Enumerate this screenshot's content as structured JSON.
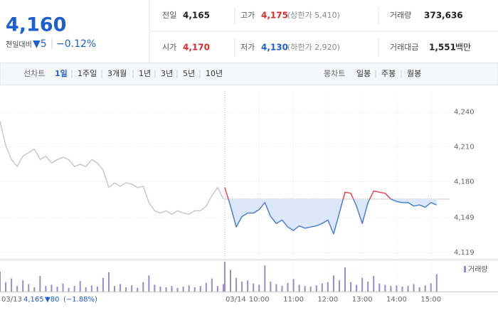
{
  "summary": {
    "price": "4,160",
    "change_label": "전일대비",
    "change": "▼5",
    "change_rate": "−0.12%",
    "items": [
      {
        "label": "전일",
        "value": "4,165"
      },
      {
        "label": "고가",
        "value": "4,175",
        "note": "(상한가 5,410)"
      },
      {
        "label": "거래량",
        "value": "373,636"
      },
      {
        "label": "시가",
        "value": "4,170"
      },
      {
        "label": "저가",
        "value": "4,130",
        "note": "(하한가 2,920)"
      },
      {
        "label": "거래대금",
        "value": "1,551",
        "unit": "백만"
      }
    ]
  },
  "line_tabs": {
    "label": "선차트",
    "items": [
      "1일",
      "1주일",
      "3개월",
      "1년",
      "3년",
      "5년",
      "10년"
    ]
  },
  "candle_tabs": {
    "label": "봉차트",
    "items": [
      "일봉",
      "주봉",
      "월봉"
    ]
  },
  "chart_data": {
    "type": "line",
    "baseline": 4165,
    "ylim": [
      4113,
      4258
    ],
    "yticks": [
      {
        "value": 4240,
        "label": "4,240"
      },
      {
        "value": 4210,
        "label": "4,210"
      },
      {
        "value": 4180,
        "label": "4,180"
      },
      {
        "value": 4149,
        "label": "4,149"
      },
      {
        "value": 4119,
        "label": "4,119"
      }
    ],
    "xticks": [
      {
        "value": "03/14 10:00",
        "label": "10:00"
      },
      {
        "value": "03/14 11:00",
        "label": "11:00"
      },
      {
        "value": "03/14 12:00",
        "label": "12:00"
      },
      {
        "value": "03/14 13:00",
        "label": "13:00"
      },
      {
        "value": "03/14 14:00",
        "label": "14:00"
      },
      {
        "value": "03/14 15:00",
        "label": "15:00"
      }
    ],
    "day_ticks": [
      {
        "value": "03/13 09:00",
        "label": "03/13"
      },
      {
        "value": "03/14 09:00",
        "label": "03/14"
      }
    ],
    "x": [
      "03/13 09:00",
      "03/13 09:10",
      "03/13 09:20",
      "03/13 09:30",
      "03/13 09:40",
      "03/13 09:50",
      "03/13 10:00",
      "03/13 10:10",
      "03/13 10:20",
      "03/13 10:30",
      "03/13 10:40",
      "03/13 10:50",
      "03/13 11:00",
      "03/13 11:10",
      "03/13 11:20",
      "03/13 11:30",
      "03/13 11:40",
      "03/13 11:50",
      "03/13 12:00",
      "03/13 12:10",
      "03/13 12:20",
      "03/13 12:30",
      "03/13 12:40",
      "03/13 12:50",
      "03/13 13:00",
      "03/13 13:10",
      "03/13 13:20",
      "03/13 13:30",
      "03/13 13:40",
      "03/13 13:50",
      "03/13 14:00",
      "03/13 14:10",
      "03/13 14:20",
      "03/13 14:30",
      "03/13 14:40",
      "03/13 14:50",
      "03/13 15:00",
      "03/13 15:10",
      "03/13 15:20",
      "03/13 15:30",
      "03/14 09:00",
      "03/14 09:10",
      "03/14 09:20",
      "03/14 09:30",
      "03/14 09:40",
      "03/14 09:50",
      "03/14 10:00",
      "03/14 10:10",
      "03/14 10:20",
      "03/14 10:30",
      "03/14 10:40",
      "03/14 10:50",
      "03/14 11:00",
      "03/14 11:10",
      "03/14 11:20",
      "03/14 11:30",
      "03/14 11:40",
      "03/14 11:50",
      "03/14 12:00",
      "03/14 12:10",
      "03/14 12:20",
      "03/14 12:30",
      "03/14 12:40",
      "03/14 12:50",
      "03/14 13:00",
      "03/14 13:10",
      "03/14 13:20",
      "03/14 13:30",
      "03/14 13:40",
      "03/14 13:50",
      "03/14 14:00",
      "03/14 14:10",
      "03/14 14:20",
      "03/14 14:30",
      "03/14 14:40",
      "03/14 14:50",
      "03/14 15:00",
      "03/14 15:10"
    ],
    "series": [
      {
        "color": "#c8c8c8",
        "values": [
          4232,
          4211,
          4199,
          4193,
          4202,
          4205,
          4208,
          4199,
          4202,
          4196,
          4199,
          4201,
          4199,
          4193,
          4195,
          4193,
          4199,
          4196,
          4190,
          4175,
          4179,
          4176,
          4179,
          4178,
          4175,
          4176,
          4162,
          4155,
          4153,
          4155,
          4152,
          4155,
          4153,
          4152,
          4155,
          4155,
          4159,
          4168,
          4175,
          4165,
          null,
          null,
          null,
          null,
          null,
          null,
          null,
          null,
          null,
          null,
          null,
          null,
          null,
          null,
          null,
          null,
          null,
          null,
          null,
          null,
          null,
          null,
          null,
          null,
          null,
          null,
          null,
          null,
          null,
          null,
          null,
          null,
          null,
          null,
          null,
          null,
          null,
          null
        ]
      },
      {
        "color": "#4a7fd6",
        "up_color": "#e8434b",
        "fill": "#dce8fa",
        "values": [
          null,
          null,
          null,
          null,
          null,
          null,
          null,
          null,
          null,
          null,
          null,
          null,
          null,
          null,
          null,
          null,
          null,
          null,
          null,
          null,
          null,
          null,
          null,
          null,
          null,
          null,
          null,
          null,
          null,
          null,
          null,
          null,
          null,
          null,
          null,
          null,
          null,
          null,
          null,
          null,
          4175,
          4159,
          4141,
          4150,
          4153,
          4153,
          4156,
          4162,
          4150,
          4144,
          4147,
          4141,
          4138,
          4142,
          4140,
          4141,
          4142,
          4144,
          4147,
          4135,
          4153,
          4171,
          4170,
          4159,
          4144,
          4162,
          4172,
          4171,
          4170,
          4165,
          4163,
          4162,
          4162,
          4159,
          4160,
          4158,
          4162,
          4160
        ]
      }
    ],
    "volume": {
      "name": "거래량",
      "color": "#9b8ad0",
      "values": [
        3200,
        1500,
        2100,
        900,
        1800,
        1200,
        700,
        2500,
        900,
        1100,
        800,
        1300,
        600,
        900,
        1700,
        700,
        1000,
        800,
        2200,
        3100,
        900,
        1200,
        700,
        1000,
        600,
        1500,
        2600,
        1100,
        800,
        700,
        900,
        600,
        800,
        1000,
        700,
        900,
        1400,
        2100,
        900,
        1200,
        4800,
        3500,
        2200,
        1600,
        1800,
        1300,
        1100,
        4200,
        1600,
        1200,
        900,
        1400,
        2000,
        1100,
        900,
        800,
        1000,
        1300,
        1500,
        2600,
        1800,
        3900,
        1500,
        1100,
        2200,
        1600,
        2500,
        1300,
        1100,
        900,
        1000,
        800,
        900,
        1200,
        700,
        1000,
        1300,
        2800
      ]
    },
    "prev_info": {
      "date": "03/13",
      "close": "4,165",
      "change": "▼80",
      "rate": "(−1.88%)"
    }
  }
}
